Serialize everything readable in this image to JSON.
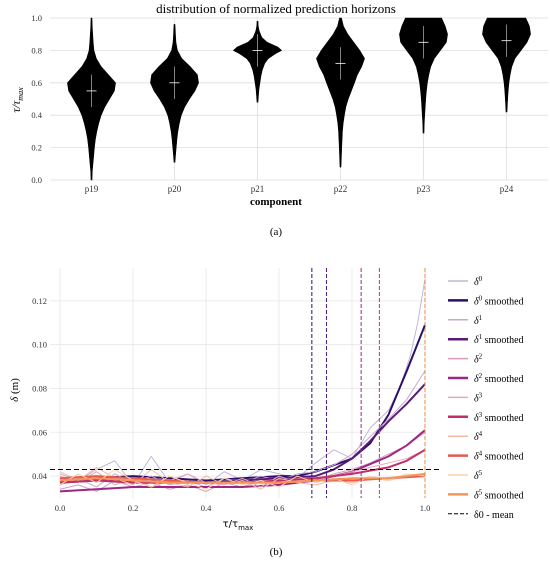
{
  "chart_data": [
    {
      "type": "violin",
      "title": "distribution of normalized prediction horizons",
      "xlabel": "component",
      "ylabel": "τ/τmax",
      "categories": [
        "p19",
        "p20",
        "p21",
        "p22",
        "p23",
        "p24"
      ],
      "ylim": [
        0,
        1
      ],
      "yticks": [
        "0.0",
        "0.2",
        "0.4",
        "0.6",
        "0.8",
        "1.0"
      ],
      "grid": true,
      "violins": [
        {
          "name": "p19",
          "min": 0.0,
          "max": 1.0,
          "median": 0.55,
          "mean": 0.52,
          "profile": [
            [
              0.0,
              0.02
            ],
            [
              0.05,
              0.03
            ],
            [
              0.1,
              0.06
            ],
            [
              0.15,
              0.09
            ],
            [
              0.2,
              0.12
            ],
            [
              0.25,
              0.16
            ],
            [
              0.3,
              0.22
            ],
            [
              0.35,
              0.3
            ],
            [
              0.4,
              0.4
            ],
            [
              0.45,
              0.55
            ],
            [
              0.5,
              0.75
            ],
            [
              0.55,
              0.95
            ],
            [
              0.6,
              1.0
            ],
            [
              0.65,
              0.7
            ],
            [
              0.7,
              0.4
            ],
            [
              0.75,
              0.2
            ],
            [
              0.8,
              0.1
            ],
            [
              0.85,
              0.07
            ],
            [
              0.9,
              0.05
            ],
            [
              0.95,
              0.03
            ],
            [
              1.0,
              0.02
            ]
          ]
        },
        {
          "name": "p20",
          "min": 0.11,
          "max": 0.96,
          "median": 0.6,
          "mean": 0.58,
          "profile": [
            [
              0.11,
              0.02
            ],
            [
              0.15,
              0.04
            ],
            [
              0.2,
              0.07
            ],
            [
              0.25,
              0.1
            ],
            [
              0.3,
              0.14
            ],
            [
              0.35,
              0.2
            ],
            [
              0.4,
              0.28
            ],
            [
              0.45,
              0.42
            ],
            [
              0.5,
              0.62
            ],
            [
              0.55,
              0.85
            ],
            [
              0.6,
              1.0
            ],
            [
              0.65,
              0.95
            ],
            [
              0.7,
              0.65
            ],
            [
              0.75,
              0.3
            ],
            [
              0.8,
              0.12
            ],
            [
              0.85,
              0.06
            ],
            [
              0.9,
              0.04
            ],
            [
              0.96,
              0.02
            ]
          ]
        },
        {
          "name": "p21",
          "min": 0.48,
          "max": 0.98,
          "median": 0.8,
          "mean": 0.78,
          "profile": [
            [
              0.48,
              0.02
            ],
            [
              0.52,
              0.04
            ],
            [
              0.56,
              0.06
            ],
            [
              0.6,
              0.1
            ],
            [
              0.64,
              0.14
            ],
            [
              0.68,
              0.2
            ],
            [
              0.72,
              0.3
            ],
            [
              0.75,
              0.45
            ],
            [
              0.78,
              0.75
            ],
            [
              0.8,
              1.0
            ],
            [
              0.82,
              0.85
            ],
            [
              0.85,
              0.4
            ],
            [
              0.88,
              0.18
            ],
            [
              0.92,
              0.07
            ],
            [
              0.95,
              0.03
            ],
            [
              0.98,
              0.02
            ]
          ]
        },
        {
          "name": "p22",
          "min": 0.08,
          "max": 1.0,
          "median": 0.72,
          "mean": 0.66,
          "profile": [
            [
              0.08,
              0.02
            ],
            [
              0.12,
              0.03
            ],
            [
              0.2,
              0.05
            ],
            [
              0.3,
              0.08
            ],
            [
              0.35,
              0.11
            ],
            [
              0.4,
              0.16
            ],
            [
              0.45,
              0.22
            ],
            [
              0.5,
              0.32
            ],
            [
              0.55,
              0.45
            ],
            [
              0.6,
              0.58
            ],
            [
              0.65,
              0.7
            ],
            [
              0.7,
              0.88
            ],
            [
              0.75,
              1.0
            ],
            [
              0.8,
              0.8
            ],
            [
              0.85,
              0.55
            ],
            [
              0.9,
              0.3
            ],
            [
              0.95,
              0.12
            ],
            [
              1.0,
              0.04
            ]
          ]
        },
        {
          "name": "p23",
          "min": 0.29,
          "max": 1.0,
          "median": 0.85,
          "mean": 0.82,
          "profile": [
            [
              0.29,
              0.02
            ],
            [
              0.35,
              0.03
            ],
            [
              0.4,
              0.05
            ],
            [
              0.45,
              0.07
            ],
            [
              0.5,
              0.09
            ],
            [
              0.55,
              0.12
            ],
            [
              0.6,
              0.16
            ],
            [
              0.65,
              0.22
            ],
            [
              0.7,
              0.3
            ],
            [
              0.75,
              0.45
            ],
            [
              0.8,
              0.7
            ],
            [
              0.85,
              0.95
            ],
            [
              0.9,
              1.0
            ],
            [
              0.95,
              0.9
            ],
            [
              1.0,
              0.75
            ]
          ]
        },
        {
          "name": "p24",
          "min": 0.42,
          "max": 1.0,
          "median": 0.86,
          "mean": 0.84,
          "profile": [
            [
              0.42,
              0.02
            ],
            [
              0.48,
              0.04
            ],
            [
              0.55,
              0.07
            ],
            [
              0.6,
              0.1
            ],
            [
              0.65,
              0.15
            ],
            [
              0.7,
              0.22
            ],
            [
              0.75,
              0.35
            ],
            [
              0.8,
              0.6
            ],
            [
              0.85,
              0.85
            ],
            [
              0.9,
              1.0
            ],
            [
              0.95,
              0.95
            ],
            [
              1.0,
              0.8
            ]
          ]
        }
      ]
    },
    {
      "type": "line",
      "xlabel": "τ/τmax",
      "ylabel": "δ (m)",
      "xlim": [
        0,
        1
      ],
      "ylim": [
        0.03,
        0.135
      ],
      "xticks": [
        "0.0",
        "0.2",
        "0.4",
        "0.6",
        "0.8",
        "1.0"
      ],
      "yticks": [
        "0.04",
        "0.06",
        "0.08",
        "0.10",
        "0.12"
      ],
      "mean_line": {
        "name": "δ0 - mean",
        "value": 0.043,
        "style": "dashed",
        "color": "#000000"
      },
      "vertical_lines": [
        {
          "x": 0.69,
          "color": "#2b0f6b"
        },
        {
          "x": 0.73,
          "color": "#4a1486"
        },
        {
          "x": 0.825,
          "color": "#a0288a"
        },
        {
          "x": 0.875,
          "color": "#c8356b"
        },
        {
          "x": 1.0,
          "color": "#f08a43"
        }
      ],
      "series": [
        {
          "label_base": "δ",
          "label_sup": "0",
          "label_suffix": "",
          "color": "#c3b6d9",
          "width": 1,
          "x": [
            0.0,
            0.05,
            0.1,
            0.15,
            0.2,
            0.25,
            0.3,
            0.35,
            0.4,
            0.45,
            0.5,
            0.55,
            0.6,
            0.65,
            0.7,
            0.75,
            0.8,
            0.85,
            0.9,
            0.93,
            0.96,
            0.98,
            1.0
          ],
          "y": [
            0.041,
            0.038,
            0.043,
            0.047,
            0.036,
            0.049,
            0.037,
            0.041,
            0.036,
            0.042,
            0.038,
            0.043,
            0.041,
            0.039,
            0.046,
            0.052,
            0.048,
            0.062,
            0.07,
            0.08,
            0.095,
            0.11,
            0.13
          ]
        },
        {
          "label_base": "δ",
          "label_sup": "0",
          "label_suffix": " smoothed",
          "color": "#2a0f6e",
          "width": 2,
          "x": [
            0.0,
            0.1,
            0.2,
            0.3,
            0.4,
            0.5,
            0.6,
            0.65,
            0.7,
            0.75,
            0.8,
            0.85,
            0.9,
            0.95,
            1.0
          ],
          "y": [
            0.038,
            0.039,
            0.04,
            0.039,
            0.038,
            0.039,
            0.04,
            0.04,
            0.042,
            0.045,
            0.048,
            0.055,
            0.068,
            0.088,
            0.109
          ]
        },
        {
          "label_base": "δ",
          "label_sup": "1",
          "label_suffix": "",
          "color": "#c9a9d2",
          "width": 1,
          "x": [
            0.0,
            0.05,
            0.1,
            0.15,
            0.2,
            0.25,
            0.3,
            0.35,
            0.4,
            0.45,
            0.5,
            0.55,
            0.6,
            0.65,
            0.7,
            0.75,
            0.8,
            0.85,
            0.9,
            0.95,
            1.0
          ],
          "y": [
            0.036,
            0.039,
            0.035,
            0.041,
            0.037,
            0.04,
            0.036,
            0.038,
            0.035,
            0.039,
            0.037,
            0.04,
            0.038,
            0.041,
            0.042,
            0.045,
            0.05,
            0.058,
            0.066,
            0.075,
            0.088
          ]
        },
        {
          "label_base": "δ",
          "label_sup": "1",
          "label_suffix": " smoothed",
          "color": "#5b1a78",
          "width": 2,
          "x": [
            0.0,
            0.1,
            0.2,
            0.3,
            0.4,
            0.5,
            0.6,
            0.7,
            0.75,
            0.8,
            0.85,
            0.9,
            0.95,
            1.0
          ],
          "y": [
            0.037,
            0.038,
            0.038,
            0.037,
            0.037,
            0.038,
            0.039,
            0.04,
            0.043,
            0.048,
            0.056,
            0.065,
            0.073,
            0.082
          ]
        },
        {
          "label_base": "δ",
          "label_sup": "2",
          "label_suffix": "",
          "color": "#d79ac6",
          "width": 1,
          "x": [
            0.0,
            0.05,
            0.1,
            0.15,
            0.2,
            0.25,
            0.3,
            0.35,
            0.4,
            0.45,
            0.5,
            0.55,
            0.6,
            0.65,
            0.7,
            0.75,
            0.8,
            0.85,
            0.9,
            0.95,
            1.0
          ],
          "y": [
            0.034,
            0.036,
            0.033,
            0.038,
            0.035,
            0.037,
            0.034,
            0.036,
            0.033,
            0.037,
            0.035,
            0.038,
            0.036,
            0.039,
            0.038,
            0.041,
            0.043,
            0.046,
            0.05,
            0.054,
            0.06
          ]
        },
        {
          "label_base": "δ",
          "label_sup": "2",
          "label_suffix": " smoothed",
          "color": "#9c2785",
          "width": 2,
          "x": [
            0.0,
            0.1,
            0.2,
            0.3,
            0.4,
            0.5,
            0.6,
            0.7,
            0.8,
            0.9,
            0.95,
            1.0
          ],
          "y": [
            0.033,
            0.034,
            0.035,
            0.035,
            0.035,
            0.035,
            0.036,
            0.038,
            0.042,
            0.049,
            0.054,
            0.061
          ]
        },
        {
          "label_base": "δ",
          "label_sup": "3",
          "label_suffix": "",
          "color": "#eaa6b8",
          "width": 1,
          "x": [
            0.0,
            0.05,
            0.1,
            0.15,
            0.2,
            0.25,
            0.3,
            0.35,
            0.4,
            0.45,
            0.5,
            0.55,
            0.6,
            0.65,
            0.7,
            0.75,
            0.8,
            0.85,
            0.9,
            0.95,
            1.0
          ],
          "y": [
            0.04,
            0.037,
            0.042,
            0.036,
            0.039,
            0.035,
            0.038,
            0.041,
            0.037,
            0.036,
            0.039,
            0.035,
            0.04,
            0.037,
            0.038,
            0.04,
            0.042,
            0.044,
            0.046,
            0.048,
            0.052
          ]
        },
        {
          "label_base": "δ",
          "label_sup": "3",
          "label_suffix": " smoothed",
          "color": "#c03068",
          "width": 2,
          "x": [
            0.0,
            0.1,
            0.2,
            0.3,
            0.4,
            0.5,
            0.6,
            0.7,
            0.8,
            0.9,
            0.95,
            1.0
          ],
          "y": [
            0.037,
            0.038,
            0.037,
            0.037,
            0.037,
            0.037,
            0.038,
            0.039,
            0.041,
            0.044,
            0.047,
            0.052
          ]
        },
        {
          "label_base": "δ",
          "label_sup": "4",
          "label_suffix": "",
          "color": "#f3b9a6",
          "width": 1,
          "x": [
            0.0,
            0.05,
            0.1,
            0.15,
            0.2,
            0.25,
            0.3,
            0.35,
            0.4,
            0.45,
            0.5,
            0.55,
            0.6,
            0.65,
            0.7,
            0.75,
            0.8,
            0.85,
            0.9,
            0.95,
            1.0
          ],
          "y": [
            0.042,
            0.038,
            0.044,
            0.039,
            0.036,
            0.043,
            0.037,
            0.035,
            0.04,
            0.036,
            0.038,
            0.034,
            0.039,
            0.037,
            0.036,
            0.038,
            0.037,
            0.039,
            0.038,
            0.04,
            0.041
          ]
        },
        {
          "label_base": "δ",
          "label_sup": "4",
          "label_suffix": " smoothed",
          "color": "#e8594f",
          "width": 2,
          "x": [
            0.0,
            0.1,
            0.2,
            0.3,
            0.4,
            0.5,
            0.6,
            0.7,
            0.8,
            0.9,
            1.0
          ],
          "y": [
            0.039,
            0.04,
            0.039,
            0.038,
            0.037,
            0.037,
            0.037,
            0.038,
            0.038,
            0.039,
            0.04
          ]
        },
        {
          "label_base": "δ",
          "label_sup": "5",
          "label_suffix": "",
          "color": "#fcd2a8",
          "width": 1,
          "x": [
            0.0,
            0.05,
            0.1,
            0.15,
            0.2,
            0.25,
            0.3,
            0.35,
            0.4,
            0.45,
            0.5,
            0.55,
            0.6,
            0.65,
            0.7,
            0.75,
            0.8,
            0.85,
            0.9,
            0.95,
            1.0
          ],
          "y": [
            0.036,
            0.041,
            0.037,
            0.043,
            0.038,
            0.035,
            0.04,
            0.037,
            0.034,
            0.039,
            0.036,
            0.038,
            0.035,
            0.04,
            0.037,
            0.039,
            0.036,
            0.04,
            0.038,
            0.041,
            0.04
          ]
        },
        {
          "label_base": "δ",
          "label_sup": "5",
          "label_suffix": " smoothed",
          "color": "#f5955a",
          "width": 2,
          "x": [
            0.0,
            0.1,
            0.2,
            0.3,
            0.4,
            0.5,
            0.6,
            0.7,
            0.8,
            0.9,
            1.0
          ],
          "y": [
            0.038,
            0.039,
            0.038,
            0.037,
            0.037,
            0.037,
            0.037,
            0.038,
            0.039,
            0.039,
            0.041
          ]
        }
      ],
      "legend": {
        "placement": "right"
      }
    }
  ],
  "captions": {
    "a": "(a)",
    "b": "(b)"
  }
}
